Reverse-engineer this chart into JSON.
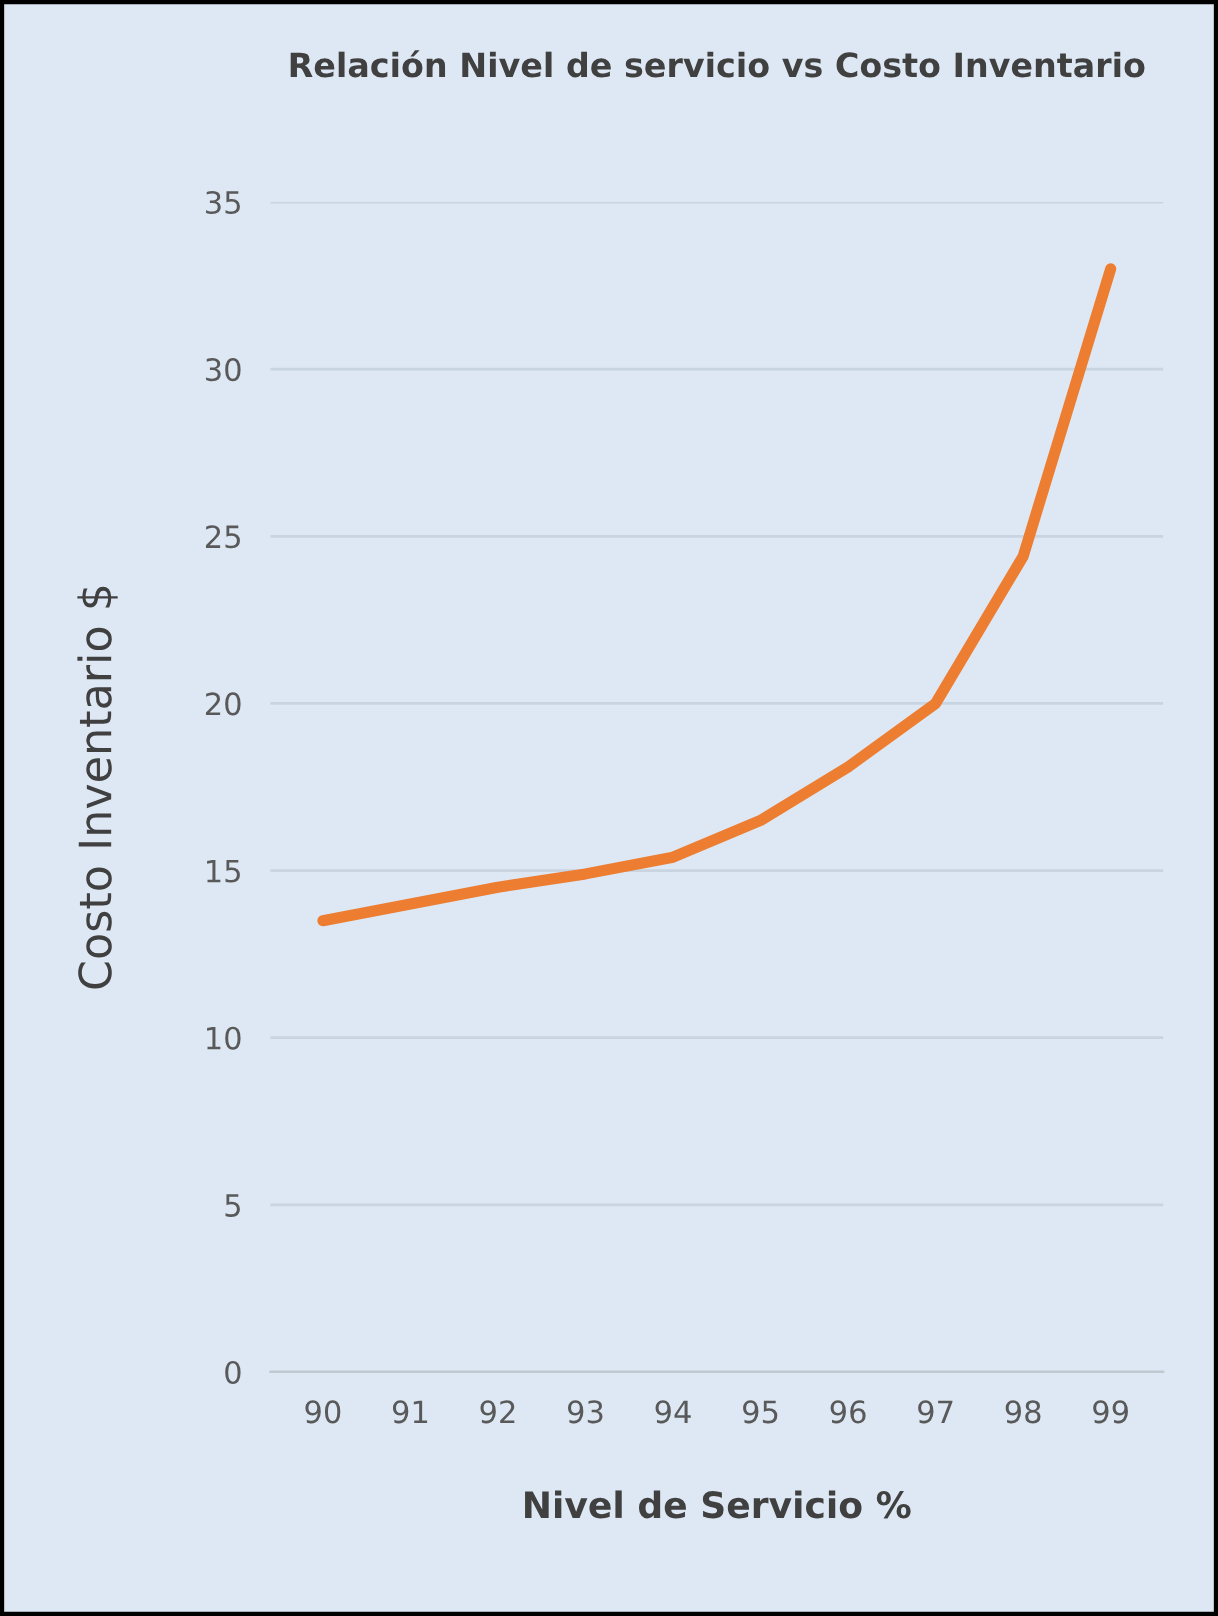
{
  "chart_data": {
    "type": "line",
    "title": "Relación Nivel de servicio vs Costo Inventario",
    "xlabel": "Nivel de Servicio %",
    "ylabel": "Costo Inventario $",
    "categories": [
      "90",
      "91",
      "92",
      "93",
      "94",
      "95",
      "96",
      "97",
      "98",
      "99"
    ],
    "series": [
      {
        "color": "#ed7d31",
        "values": [
          13.5,
          14.0,
          14.5,
          14.9,
          15.4,
          16.5,
          18.1,
          20.0,
          24.4,
          33.0
        ]
      }
    ],
    "ylim": [
      0,
      35
    ],
    "yticks": [
      0,
      5,
      10,
      15,
      20,
      25,
      30,
      35
    ],
    "grid": "y",
    "legend": false,
    "marker": "none",
    "line_style": "solid"
  }
}
